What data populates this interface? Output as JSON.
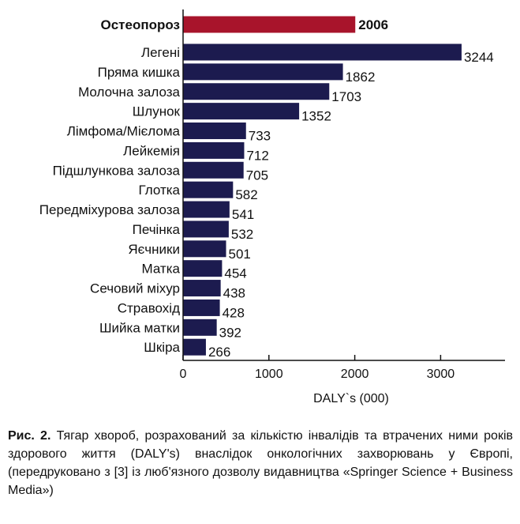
{
  "chart_data": {
    "type": "bar",
    "orientation": "horizontal",
    "highlight": {
      "category": "Остеопороз",
      "value_label": "2006",
      "value": 2006
    },
    "categories": [
      "Легені",
      "Пряма кишка",
      "Молочна залоза",
      "Шлунок",
      "Лімфома/Мієлома",
      "Лейкемія",
      "Підшлункова залоза",
      "Глотка",
      "Передміхурова залоза",
      "Печінка",
      "Яєчники",
      "Матка",
      "Сечовий міхур",
      "Стравохід",
      "Шийка матки",
      "Шкіра"
    ],
    "values": [
      3244,
      1862,
      1703,
      1352,
      733,
      712,
      705,
      582,
      541,
      532,
      501,
      454,
      438,
      428,
      392,
      266
    ],
    "xlabel": "DALY`s (000)",
    "ylabel": "",
    "xlim": [
      0,
      3700
    ],
    "xticks": [
      0,
      1000,
      2000,
      3000
    ],
    "grid": false,
    "colors": {
      "bar": "#1c1b4f",
      "highlight": "#a8142b",
      "axis": "#111111"
    }
  },
  "caption": {
    "label": "Рис. 2.",
    "text": "Тягар хвороб, розрахований за кількістю інвалідів та втрачених ними років здорового життя (DALY's) внаслідок онкологічних захворювань у Європі, (передруковано з [3] із люб'язного дозволу видавництва «Springer Science + Business Media»)"
  }
}
